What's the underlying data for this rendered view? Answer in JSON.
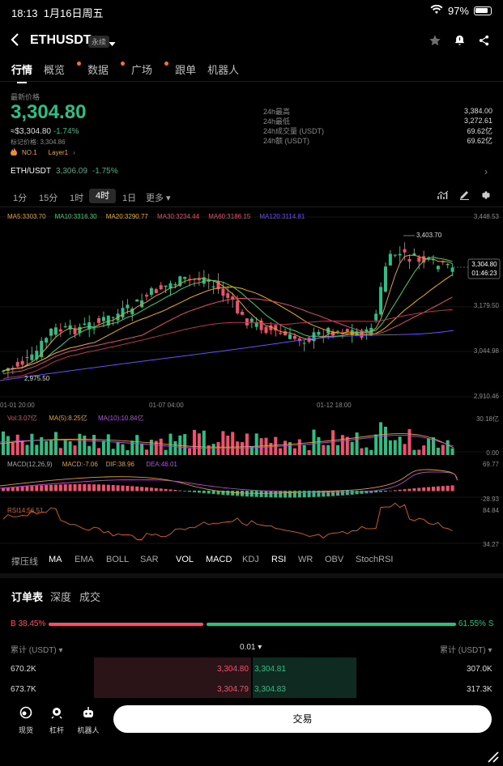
{
  "status": {
    "time": "18:13",
    "date": "1月16日周五",
    "battery": "97%"
  },
  "header": {
    "symbol": "ETHUSDT",
    "tag": "永续"
  },
  "tabs": [
    "行情",
    "概览",
    "数据",
    "广场",
    "跟单",
    "机器人"
  ],
  "price": {
    "latest_label": "最新价格",
    "value": "3,304.80",
    "usd": "≈$3,304.80",
    "change": "-1.74%",
    "mark": "标记价格: 3,304.86",
    "rank": "NO.1",
    "category": "Layer1"
  },
  "stats": [
    {
      "label": "24h最高",
      "value": "3,384.00"
    },
    {
      "label": "24h最低",
      "value": "3,272.61"
    },
    {
      "label": "24h成交量 (USDT)",
      "value": "69.62亿"
    },
    {
      "label": "24h额 (USDT)",
      "value": "69.62亿"
    }
  ],
  "pair": {
    "name": "ETH/USDT",
    "price": "3,306.09",
    "change": "-1.75%"
  },
  "intervals": [
    "1分",
    "15分",
    "1时",
    "4时",
    "1日",
    "更多"
  ],
  "ma_legend": [
    {
      "text": "MA5:3303.70",
      "color": "#e0a030"
    },
    {
      "text": "MA10:3316.30",
      "color": "#3fd06a"
    },
    {
      "text": "MA20:3290.77",
      "color": "#f0b000"
    },
    {
      "text": "MA30:3234.44",
      "color": "#e0506e"
    },
    {
      "text": "MA60:3186.15",
      "color": "#e0506e"
    },
    {
      "text": "MA120:3114.81",
      "color": "#6a4cff"
    }
  ],
  "price_axis": [
    "3,448.53",
    "3,179.50",
    "3,044.98",
    "2,910.46"
  ],
  "current_price_tag": "3,304.80",
  "countdown": "01:46:23",
  "high_marker": "3,403.70",
  "low_marker": "2,975.50",
  "time_axis": [
    "01-01 20:00",
    "01-07 04:00",
    "01-12 18:00"
  ],
  "vol_legend": [
    {
      "text": "Vol:3.07亿",
      "color": "#e0506e"
    },
    {
      "text": "MA(5):8.25亿",
      "color": "#e0a030"
    },
    {
      "text": "MA(10):10.84亿",
      "color": "#b050e0"
    }
  ],
  "vol_axis": [
    "30.18亿",
    "0.00"
  ],
  "macd_legend": [
    {
      "text": "MACD(12,26,9)",
      "color": "#aaaaaa"
    },
    {
      "text": "MACD:-7.06",
      "color": "#e0a030"
    },
    {
      "text": "DIF:38.96",
      "color": "#e0a030"
    },
    {
      "text": "DEA:46.01",
      "color": "#b050e0"
    }
  ],
  "macd_axis": [
    "69.77",
    "-28.93"
  ],
  "rsi_legend": {
    "text": "RSI14:56.51",
    "color": "#e06020"
  },
  "rsi_axis": [
    "84.84",
    "34.27"
  ],
  "indicators": [
    "撑压线",
    "MA",
    "EMA",
    "BOLL",
    "SAR",
    "VOL",
    "MACD",
    "KDJ",
    "RSI",
    "WR",
    "OBV",
    "StochRSI"
  ],
  "orderbook": {
    "tabs": [
      "订单表",
      "深度",
      "成交"
    ],
    "buy_pct": "B 38.45%",
    "sell_pct": "61.55% S",
    "buy_ratio": 0.3845,
    "left_header": "累计 (USDT)",
    "precision": "0.01",
    "right_header": "累计 (USDT)",
    "rows": [
      {
        "bid_total": "670.2K",
        "bid": "3,304.80",
        "ask": "3,304.81",
        "ask_total": "307.0K"
      },
      {
        "bid_total": "673.7K",
        "bid": "3,304.79",
        "ask": "3,304.83",
        "ask_total": "317.3K"
      }
    ]
  },
  "bottom_nav": [
    "现货",
    "杠杆",
    "机器人"
  ],
  "trade_button": "交易",
  "colors": {
    "up": "#2ebd85",
    "down": "#f0506e"
  }
}
